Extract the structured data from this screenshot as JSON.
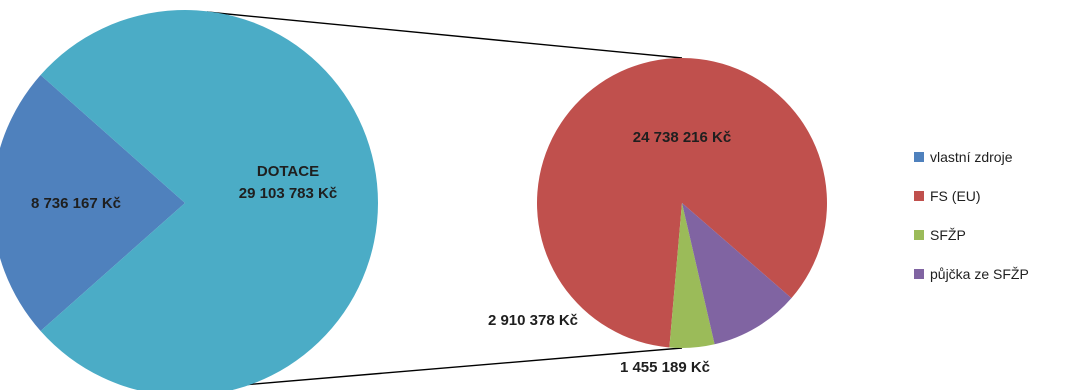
{
  "chart_data": {
    "type": "pie",
    "subtype": "pie-of-pie",
    "main_pie": {
      "slices": [
        {
          "key": "vlastni",
          "label_lines": [
            "8 736 167 Kč"
          ],
          "value": 8736167,
          "color": "#4f81bd"
        },
        {
          "key": "dotace",
          "label_lines": [
            "DOTACE",
            "29 103 783 Kč"
          ],
          "value": 29103783,
          "color": "#4bacc6"
        }
      ]
    },
    "secondary_pie": {
      "slices": [
        {
          "key": "fs",
          "label_lines": [
            "24 738 216 Kč"
          ],
          "value": 24738216,
          "color": "#c0504d"
        },
        {
          "key": "sfzp",
          "label_lines": [
            "1 455 189 Kč"
          ],
          "value": 1455189,
          "color": "#9bbb59"
        },
        {
          "key": "pujcka",
          "label_lines": [
            "2 910 378 Kč"
          ],
          "value": 2910378,
          "color": "#8064a2"
        }
      ]
    },
    "legend": {
      "position": "right",
      "items": [
        {
          "label": "vlastní zdroje",
          "color": "#4f81bd"
        },
        {
          "label": "FS (EU)",
          "color": "#c0504d"
        },
        {
          "label": "SFŽP",
          "color": "#9bbb59"
        },
        {
          "label": "půjčka ze SFŽP",
          "color": "#8064a2"
        }
      ]
    }
  }
}
